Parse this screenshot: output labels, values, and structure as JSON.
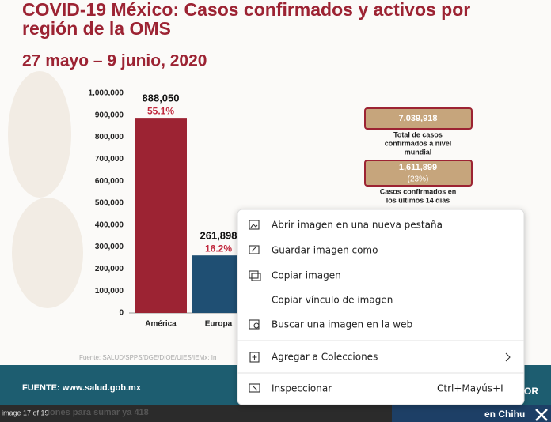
{
  "slide": {
    "title": "COVID-19 México: Casos confirmados y activos por región de la OMS",
    "subtitle": "27 mayo – 9 junio, 2020",
    "chart": {
      "type": "bar",
      "categories": [
        "América",
        "Europa"
      ],
      "values": [
        888050,
        261898
      ],
      "value_labels": [
        "888,050",
        "261,898"
      ],
      "share_labels": [
        "55.1%",
        "16.2%"
      ],
      "colors": [
        "#9c2333",
        "#1f4f73"
      ],
      "ylim": [
        0,
        1000000
      ],
      "yticks": [
        0,
        {
          "value": 100000,
          "label": "100,000"
        },
        {
          "value": 200000,
          "label": "200,000"
        },
        {
          "value": 300000,
          "label": "300,000"
        },
        {
          "value": 400000,
          "label": "400,000"
        },
        {
          "value": 500000,
          "label": "500,000"
        },
        {
          "value": 600000,
          "label": "600,000"
        },
        {
          "value": 700000,
          "label": "700,000"
        },
        {
          "value": 800000,
          "label": "800,000"
        },
        {
          "value": 900000,
          "label": "900,000"
        },
        {
          "value": 1000000,
          "label": "1,000,000"
        }
      ]
    },
    "boxes": [
      {
        "value": "7,039,918",
        "caption": [
          "Total de casos",
          "confirmados a nivel",
          "mundial"
        ]
      },
      {
        "value": "1,611,899",
        "share": "(23%)",
        "caption": [
          "Casos confirmados en",
          "los últimos 14 días"
        ]
      }
    ],
    "source": "Fuente: SALUD/SPPS/DGE/DIOE/UIES/IEMx: In",
    "footer": "FUENTE: www.salud.gob.mx",
    "footer_right": "OR"
  },
  "viewer": {
    "counter": "image 17 of 19",
    "caption": "iones para sumar ya 418",
    "side_text": "en Chihu"
  },
  "context_menu": {
    "items": [
      "Abrir imagen en una nueva pestaña",
      "Guardar imagen como",
      "Copiar imagen",
      "Copiar vínculo de imagen",
      "Buscar una imagen en la web",
      "Agregar a Colecciones",
      "Inspeccionar"
    ],
    "shortcut": "Ctrl+Mayús+I"
  }
}
